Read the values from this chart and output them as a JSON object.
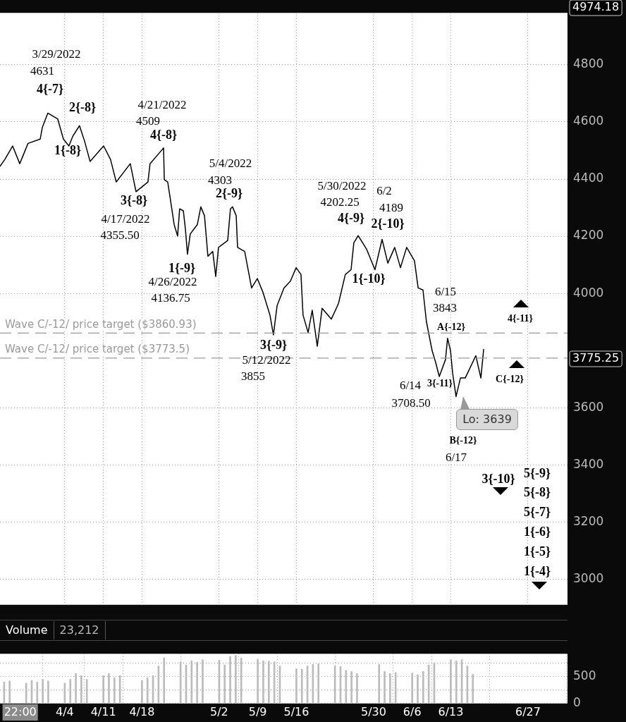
{
  "chart_data": [
    {
      "type": "line",
      "x": [
        "2022-03-23T06:00",
        "2022-03-24T03:00",
        "2022-03-25T13:00",
        "2022-03-26T20:00",
        "2022-03-28T08:00",
        "2022-03-30T13:00",
        "2022-03-30T22:00",
        "2022-03-31T22:00",
        "2022-04-02T17:00",
        "2022-04-03T18:00",
        "2022-04-04T18:00",
        "2022-04-05T10:00",
        "2022-04-06T16:00",
        "2022-04-07T14:00",
        "2022-04-08T14:00",
        "2022-04-11T01:00",
        "2022-04-12T07:00",
        "2022-04-13T08:00",
        "2022-04-15T21:00",
        "2022-04-16T22:00",
        "2022-04-19T02:00",
        "2022-04-19T11:00",
        "2022-04-21T22:00",
        "2022-04-22T01:00",
        "2022-04-22T16:00",
        "2022-04-23T04:00",
        "2022-04-23T20:00",
        "2022-04-24T11:00",
        "2022-04-24T20:00",
        "2022-04-25T12:00",
        "2022-04-25T21:00",
        "2022-04-26T06:00",
        "2022-04-26T18:00",
        "2022-04-27T10:00",
        "2022-04-28T01:00",
        "2022-04-28T16:00",
        "2022-04-29T08:00",
        "2022-04-29T23:00",
        "2022-04-30T20:00",
        "2022-05-01T09:00",
        "2022-05-01T21:00",
        "2022-05-03T13:00",
        "2022-05-04T01:00",
        "2022-05-04T10:00",
        "2022-05-05T02:00",
        "2022-05-05T08:00",
        "2022-05-06T15:00",
        "2022-05-07T21:00",
        "2022-05-08T22:00",
        "2022-05-09T22:00",
        "2022-05-11T05:00",
        "2022-05-11T20:00",
        "2022-05-12T12:00",
        "2022-05-13T18:00",
        "2022-05-14T22:00",
        "2022-05-15T23:00",
        "2022-05-16T20:00",
        "2022-05-17T05:00",
        "2022-05-18T03:00",
        "2022-05-18T21:00",
        "2022-05-19T19:00",
        "2022-05-20T16:00",
        "2022-05-22T08:00",
        "2022-05-23T15:00",
        "2022-05-24T21:00",
        "2022-05-25T22:00",
        "2022-05-26T10:00",
        "2022-05-27T05:00",
        "2022-05-28T18:00",
        "2022-05-30T06:00",
        "2022-05-31T13:00",
        "2022-06-01T14:00",
        "2022-06-02T20:00",
        "2022-06-03T21:00",
        "2022-06-05T00:00",
        "2022-06-06T10:00",
        "2022-06-07T02:00",
        "2022-06-07T23:00",
        "2022-06-08T14:00",
        "2022-06-09T15:00",
        "2022-06-10T06:00",
        "2022-06-10T22:00",
        "2022-06-12T01:00",
        "2022-06-12T10:00",
        "2022-06-12T23:00",
        "2022-06-13T08:00",
        "2022-06-13T23:00",
        "2022-06-14T18:00",
        "2022-06-15T15:00",
        "2022-06-17T13:00",
        "2022-06-18T11:00",
        "2022-06-18T23:00"
      ],
      "series": [
        {
          "color": "#000000",
          "values": [
            4445,
            4469,
            4516,
            4454,
            4525,
            4540,
            4580,
            4631,
            4611,
            4540,
            4516,
            4549,
            4587,
            4533,
            4462,
            4516,
            4469,
            4390,
            4454,
            4356,
            4390,
            4454,
            4509,
            4398,
            4390,
            4327,
            4241,
            4201,
            4296,
            4289,
            4225,
            4137,
            4208,
            4225,
            4241,
            4303,
            4272,
            4130,
            4147,
            4059,
            4161,
            4185,
            4296,
            4303,
            4272,
            4161,
            4147,
            4019,
            4052,
            4005,
            3924,
            3855,
            3957,
            4019,
            4043,
            4090,
            4066,
            3924,
            3863,
            3941,
            3815,
            3948,
            3910,
            3964,
            4066,
            4083,
            4177,
            4202,
            4154,
            4083,
            4189,
            4106,
            4161,
            4090,
            4161,
            4114,
            4019,
            4012,
            3901,
            3799,
            3759,
            3709,
            3768,
            3843,
            3799,
            3721,
            3639,
            3704,
            3704,
            3782,
            3704,
            3804
          ]
        }
      ],
      "xlim": [
        "2022-03-23T06:00",
        "2022-07-04T04:00"
      ],
      "xticks": [
        {
          "value": "2022-04-04",
          "label": null
        },
        {
          "value": "2022-04-11",
          "label": null
        },
        {
          "value": "2022-04-18",
          "label": null
        },
        {
          "value": "2022-05-02",
          "label": null
        },
        {
          "value": "2022-05-09",
          "label": null
        },
        {
          "value": "2022-05-16",
          "label": null
        },
        {
          "value": "2022-05-30",
          "label": null
        },
        {
          "value": "2022-06-06",
          "label": null
        },
        {
          "value": "2022-06-13",
          "label": null
        },
        {
          "value": "2022-06-27",
          "label": null
        }
      ],
      "ylim": [
        2910,
        4982
      ],
      "yticks": [
        3000,
        3200,
        3400,
        3600,
        4000,
        4200,
        4400,
        4600,
        4800
      ],
      "tick_labels": "y",
      "grid": true,
      "legend": false,
      "marker": "none",
      "ref_lines": [
        {
          "axis": "y",
          "value": 3860.93,
          "label": "Wave C/-12/ price target ($3860.93)",
          "color": "#999999",
          "line_style": "dashed"
        },
        {
          "axis": "y",
          "value": 3773.5,
          "label": "Wave C/-12/ price target ($3773.5)",
          "color": "#999999",
          "line_style": "dashed"
        }
      ],
      "annotations": [
        "4974.18",
        "3775.25",
        "Lo: 3639",
        "3/29/2022",
        "4631",
        "4/21/2022",
        "4509",
        "4/17/2022",
        "4355.50",
        "5/4/2022",
        "4303",
        "4/26/2022",
        "4136.75",
        "5/12/2022",
        "3855",
        "5/30/2022",
        "4202.25",
        "6/2",
        "4189",
        "6/15",
        "3843",
        "6/14",
        "3708.50",
        "6/17",
        "4{-7}",
        "2{-8}",
        "1{-8}",
        "4{-8}",
        "3{-8}",
        "2{-9}",
        "1{-9}",
        "3{-9}",
        "4{-9}",
        "2{-10}",
        "1{-10}",
        "A{-12}",
        "4{-11}",
        "3{-11}",
        "C{-12}",
        "B{-12}",
        "3{-10}",
        "5{-9}",
        "5{-8}",
        "5{-7}",
        "1{-6}",
        "1{-5}",
        "1{-4}"
      ]
    },
    {
      "type": "bar",
      "title": "Volume",
      "subtitle": "23,212",
      "x": [
        "2022-03-24",
        "2022-03-25",
        "2022-03-28",
        "2022-03-29",
        "2022-03-30",
        "2022-03-31",
        "2022-04-01",
        "2022-04-04",
        "2022-04-05",
        "2022-04-06",
        "2022-04-07",
        "2022-04-08",
        "2022-04-11",
        "2022-04-12",
        "2022-04-13",
        "2022-04-14",
        "2022-04-18",
        "2022-04-19",
        "2022-04-20",
        "2022-04-21",
        "2022-04-22",
        "2022-04-25",
        "2022-04-26",
        "2022-04-27",
        "2022-04-28",
        "2022-04-29",
        "2022-05-02",
        "2022-05-03",
        "2022-05-04",
        "2022-05-05",
        "2022-05-06",
        "2022-05-09",
        "2022-05-10",
        "2022-05-11",
        "2022-05-12",
        "2022-05-13",
        "2022-05-16",
        "2022-05-17",
        "2022-05-18",
        "2022-05-19",
        "2022-05-20",
        "2022-05-23",
        "2022-05-24",
        "2022-05-25",
        "2022-05-26",
        "2022-05-27",
        "2022-05-31",
        "2022-06-01",
        "2022-06-02",
        "2022-06-03",
        "2022-06-06",
        "2022-06-07",
        "2022-06-08",
        "2022-06-09",
        "2022-06-10",
        "2022-06-13",
        "2022-06-14",
        "2022-06-15",
        "2022-06-16",
        "2022-06-17"
      ],
      "series": [
        {
          "color": "#bbbbbb",
          "values": [
            400,
            420,
            380,
            430,
            400,
            450,
            420,
            380,
            450,
            560,
            520,
            450,
            520,
            560,
            480,
            520,
            430,
            480,
            520,
            700,
            850,
            780,
            720,
            800,
            770,
            820,
            810,
            720,
            880,
            900,
            850,
            830,
            800,
            790,
            780,
            700,
            650,
            640,
            700,
            730,
            740,
            700,
            690,
            620,
            600,
            560,
            730,
            600,
            560,
            580,
            570,
            540,
            600,
            720,
            760,
            820,
            800,
            820,
            700,
            550
          ]
        }
      ],
      "xlim": [
        "2022-03-23T06:00",
        "2022-07-04T04:00"
      ],
      "xticks": [
        {
          "value": "2022-03-26T22:00",
          "label": "22:00"
        },
        {
          "value": "2022-04-04",
          "label": "4/4"
        },
        {
          "value": "2022-04-11",
          "label": "4/11"
        },
        {
          "value": "2022-04-18",
          "label": "4/18"
        },
        {
          "value": "2022-05-02",
          "label": "5/2"
        },
        {
          "value": "2022-05-09",
          "label": "5/9"
        },
        {
          "value": "2022-05-16",
          "label": "5/16"
        },
        {
          "value": "2022-05-30",
          "label": "5/30"
        },
        {
          "value": "2022-06-06",
          "label": "6/6"
        },
        {
          "value": "2022-06-13",
          "label": "6/13"
        },
        {
          "value": "2022-06-27",
          "label": "6/27"
        }
      ],
      "ylim": [
        0,
        930
      ],
      "yticks": [
        0,
        {
          "value": 250,
          "label": null
        },
        500,
        {
          "value": 750,
          "label": null
        }
      ],
      "grid": true,
      "legend": false
    }
  ]
}
